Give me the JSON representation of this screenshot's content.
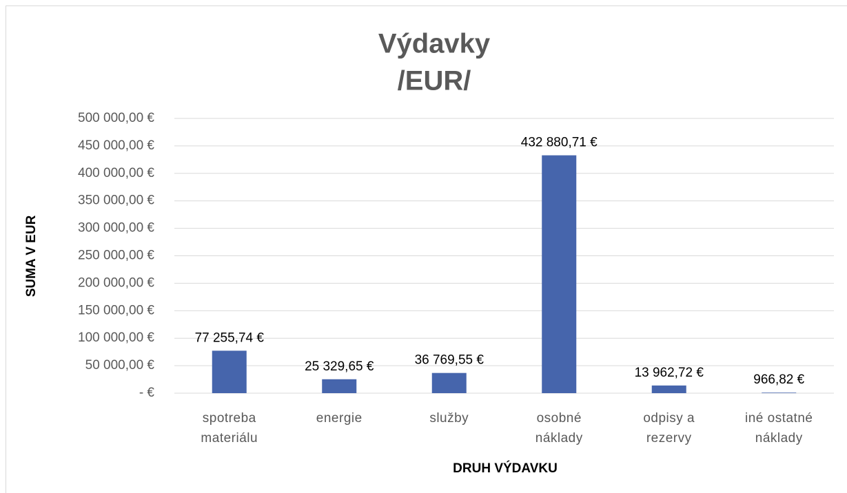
{
  "chart_data": {
    "type": "bar",
    "title": [
      "Výdavky",
      "/EUR/"
    ],
    "x_label": "DRUH VÝDAVKU",
    "y_label": "SUMA V EUR",
    "categories": [
      "spotreba materiálu",
      "energie",
      "služby",
      "osobné náklady",
      "odpisy a rezervy",
      "iné ostatné náklady"
    ],
    "values": [
      77255.74,
      25329.65,
      36769.55,
      432880.71,
      13962.72,
      966.82
    ],
    "value_labels": [
      "77 255,74 €",
      "25 329,65 €",
      "36 769,55 €",
      "432 880,71 €",
      "13 962,72 €",
      "966,82 €"
    ],
    "color": "#4665ac",
    "ylim": [
      0,
      500000
    ],
    "yticks": [
      {
        "value": 0,
        "label": "-  €"
      },
      {
        "value": 50000,
        "label": "50 000,00 €"
      },
      {
        "value": 100000,
        "label": "100 000,00 €"
      },
      {
        "value": 150000,
        "label": "150 000,00 €"
      },
      {
        "value": 200000,
        "label": "200 000,00 €"
      },
      {
        "value": 250000,
        "label": "250 000,00 €"
      },
      {
        "value": 300000,
        "label": "300 000,00 €"
      },
      {
        "value": 350000,
        "label": "350 000,00 €"
      },
      {
        "value": 400000,
        "label": "400 000,00 €"
      },
      {
        "value": 450000,
        "label": "450 000,00 €"
      },
      {
        "value": 500000,
        "label": "500 000,00 €"
      }
    ],
    "grid": true
  }
}
